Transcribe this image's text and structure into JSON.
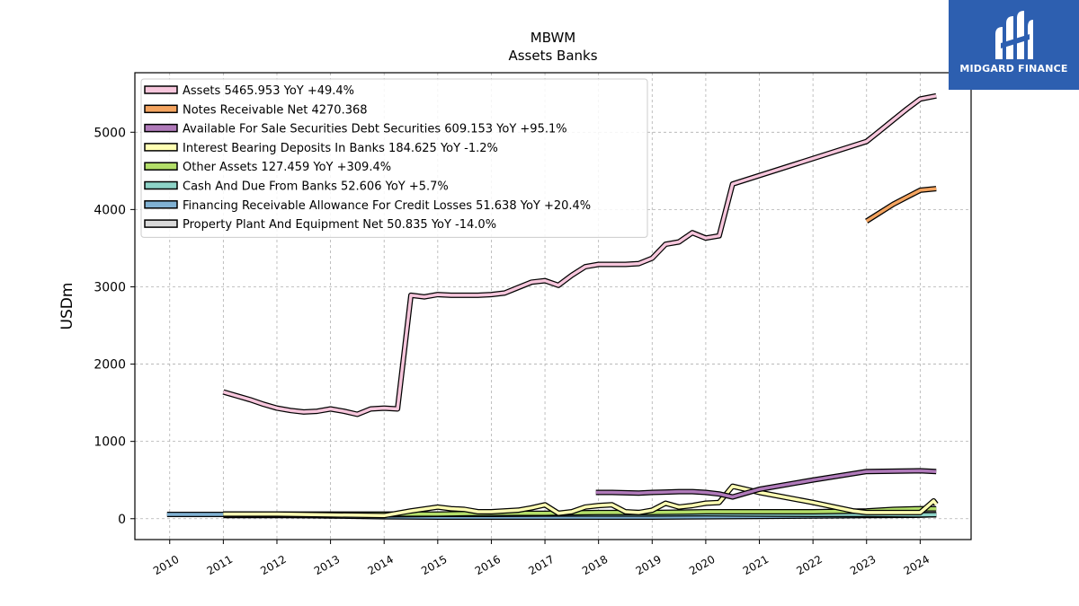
{
  "brand": {
    "name": "MIDGARD FINANCE",
    "bg_color": "#2d5fb0",
    "icon": "midgard-m-logo-icon"
  },
  "chart_data": {
    "type": "line",
    "title": "MBWM",
    "subtitle": "Assets Banks",
    "ylabel": "USDm",
    "xlabel": "",
    "xlim": [
      2009.35,
      2024.95
    ],
    "ylim": [
      -270,
      5770
    ],
    "x_ticks": [
      2010,
      2011,
      2012,
      2013,
      2014,
      2015,
      2016,
      2017,
      2018,
      2019,
      2020,
      2021,
      2022,
      2023,
      2024
    ],
    "y_ticks": [
      0,
      1000,
      2000,
      3000,
      4000,
      5000
    ],
    "grid": true,
    "legend_position": "top-left",
    "series": [
      {
        "name": "Assets",
        "legend": "Assets  5465.953 YoY +49.4%",
        "color": "#f7c6dc",
        "x": [
          2011.0,
          2011.25,
          2011.5,
          2011.75,
          2012.0,
          2012.25,
          2012.5,
          2012.75,
          2013.0,
          2013.25,
          2013.5,
          2013.75,
          2014.0,
          2014.25,
          2014.5,
          2014.75,
          2015.0,
          2015.25,
          2015.5,
          2015.75,
          2016.0,
          2016.25,
          2016.5,
          2016.75,
          2017.0,
          2017.25,
          2017.5,
          2017.75,
          2018.0,
          2018.25,
          2018.5,
          2018.75,
          2019.0,
          2019.25,
          2019.5,
          2019.75,
          2020.0,
          2020.25,
          2020.5,
          2023.0,
          2023.25,
          2023.5,
          2023.75,
          2024.0,
          2024.3
        ],
        "y": [
          1640,
          1590,
          1540,
          1480,
          1430,
          1400,
          1380,
          1390,
          1420,
          1390,
          1350,
          1420,
          1430,
          1420,
          2890,
          2870,
          2900,
          2890,
          2890,
          2890,
          2900,
          2920,
          2990,
          3060,
          3080,
          3020,
          3150,
          3260,
          3290,
          3290,
          3290,
          3300,
          3370,
          3550,
          3580,
          3700,
          3630,
          3660,
          4330,
          4880,
          5020,
          5160,
          5300,
          5430,
          5470
        ]
      },
      {
        "name": "Notes Receivable Net",
        "legend": "Notes Receivable Net  4270.368",
        "color": "#f4a460",
        "x": [
          2023.0,
          2023.25,
          2023.5,
          2023.75,
          2024.0,
          2024.3
        ],
        "y": [
          3850,
          3960,
          4070,
          4160,
          4250,
          4270
        ]
      },
      {
        "name": "Available For Sale Securities Debt Securities",
        "legend": "Available For Sale Securities Debt Securities  609.153 YoY +95.1%",
        "color": "#b07aba",
        "x": [
          2017.95,
          2018.25,
          2018.5,
          2018.75,
          2019.0,
          2019.25,
          2019.5,
          2019.75,
          2020.0,
          2020.25,
          2020.5,
          2021.0,
          2022.0,
          2023.0,
          2024.0,
          2024.3
        ],
        "y": [
          340,
          340,
          335,
          330,
          340,
          345,
          350,
          350,
          340,
          320,
          280,
          380,
          500,
          610,
          620,
          610
        ]
      },
      {
        "name": "Interest Bearing Deposits In Banks",
        "legend": "Interest Bearing Deposits In Banks  184.625 YoY -1.2%",
        "color": "#ffffb3",
        "x": [
          2011.0,
          2012.0,
          2013.0,
          2014.0,
          2014.5,
          2015.0,
          2015.25,
          2015.5,
          2015.75,
          2016.0,
          2016.25,
          2016.5,
          2016.75,
          2017.0,
          2017.25,
          2017.5,
          2017.75,
          2018.0,
          2018.25,
          2018.5,
          2018.75,
          2019.0,
          2019.25,
          2019.5,
          2019.75,
          2020.0,
          2020.25,
          2020.5,
          2021.0,
          2022.0,
          2022.75,
          2023.0,
          2024.0,
          2024.25,
          2024.3
        ],
        "y": [
          60,
          60,
          50,
          40,
          100,
          150,
          130,
          120,
          90,
          90,
          100,
          110,
          140,
          180,
          70,
          90,
          150,
          170,
          180,
          90,
          80,
          110,
          200,
          150,
          170,
          200,
          210,
          420,
          340,
          210,
          100,
          80,
          80,
          230,
          185
        ]
      },
      {
        "name": "Other Assets",
        "legend": "Other Assets  127.459 YoY +309.4%",
        "color": "#b3de69",
        "x": [
          2011.0,
          2012.0,
          2013.0,
          2014.0,
          2015.0,
          2016.0,
          2017.0,
          2018.0,
          2019.0,
          2020.0,
          2021.0,
          2022.0,
          2023.0,
          2023.5,
          2024.0,
          2024.3
        ],
        "y": [
          60,
          60,
          60,
          60,
          60,
          70,
          70,
          80,
          80,
          90,
          90,
          90,
          100,
          120,
          130,
          127
        ]
      },
      {
        "name": "Cash And Due From Banks",
        "legend": "Cash And Due From Banks  52.606 YoY +5.7%",
        "color": "#8dd3c7",
        "x": [
          2011.0,
          2012.0,
          2013.0,
          2014.0,
          2015.0,
          2016.0,
          2017.0,
          2018.0,
          2019.0,
          2020.0,
          2021.0,
          2022.0,
          2023.0,
          2024.0,
          2024.3
        ],
        "y": [
          60,
          55,
          50,
          50,
          55,
          55,
          60,
          60,
          60,
          65,
          60,
          55,
          55,
          50,
          53
        ]
      },
      {
        "name": "Financing Receivable Allowance For Credit Losses",
        "legend": "Financing Receivable Allowance For Credit Losses  51.638 YoY +20.4%",
        "color": "#80b1d3",
        "x": [
          2009.95,
          2011.0,
          2012.0,
          2013.0,
          2014.0,
          2015.0,
          2016.0,
          2017.0,
          2018.0,
          2019.0,
          2020.0,
          2021.0,
          2022.0,
          2023.0,
          2024.0,
          2024.3
        ],
        "y": [
          55,
          55,
          45,
          35,
          25,
          20,
          20,
          20,
          20,
          20,
          25,
          30,
          35,
          40,
          45,
          52
        ]
      },
      {
        "name": "Property Plant And Equipment Net",
        "legend": "Property Plant And Equipment Net  50.835 YoY -14.0%",
        "color": "#d9d9d9",
        "x": [
          2011.0,
          2012.0,
          2013.0,
          2014.0,
          2015.0,
          2016.0,
          2017.0,
          2018.0,
          2019.0,
          2020.0,
          2021.0,
          2022.0,
          2023.0,
          2024.0,
          2024.3
        ],
        "y": [
          40,
          40,
          40,
          40,
          45,
          45,
          45,
          45,
          50,
          55,
          60,
          60,
          60,
          55,
          51
        ]
      }
    ]
  }
}
